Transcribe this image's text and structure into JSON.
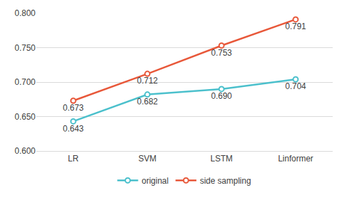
{
  "chart_data": {
    "type": "line",
    "categories": [
      "LR",
      "SVM",
      "LSTM",
      "Linformer"
    ],
    "series": [
      {
        "name": "original",
        "color": "#4bc0cc",
        "marker": "circle",
        "values": [
          0.643,
          0.682,
          0.69,
          0.704
        ],
        "value_labels": [
          "0.643",
          "0.682",
          "0.690",
          "0.704"
        ]
      },
      {
        "name": "side sampling",
        "color": "#e8583a",
        "marker": "circle",
        "values": [
          0.673,
          0.712,
          0.753,
          0.791
        ],
        "value_labels": [
          "0.673",
          "0.712",
          "0.753",
          "0.791"
        ]
      }
    ],
    "ylim": [
      0.6,
      0.8
    ],
    "yticks": [
      {
        "value": 0.6,
        "label": "0.600"
      },
      {
        "value": 0.65,
        "label": "0.650"
      },
      {
        "value": 0.7,
        "label": "0.700"
      },
      {
        "value": 0.75,
        "label": "0.750"
      },
      {
        "value": 0.8,
        "label": "0.800"
      }
    ],
    "grid": true,
    "legend": "bottom",
    "data_labels": true
  }
}
